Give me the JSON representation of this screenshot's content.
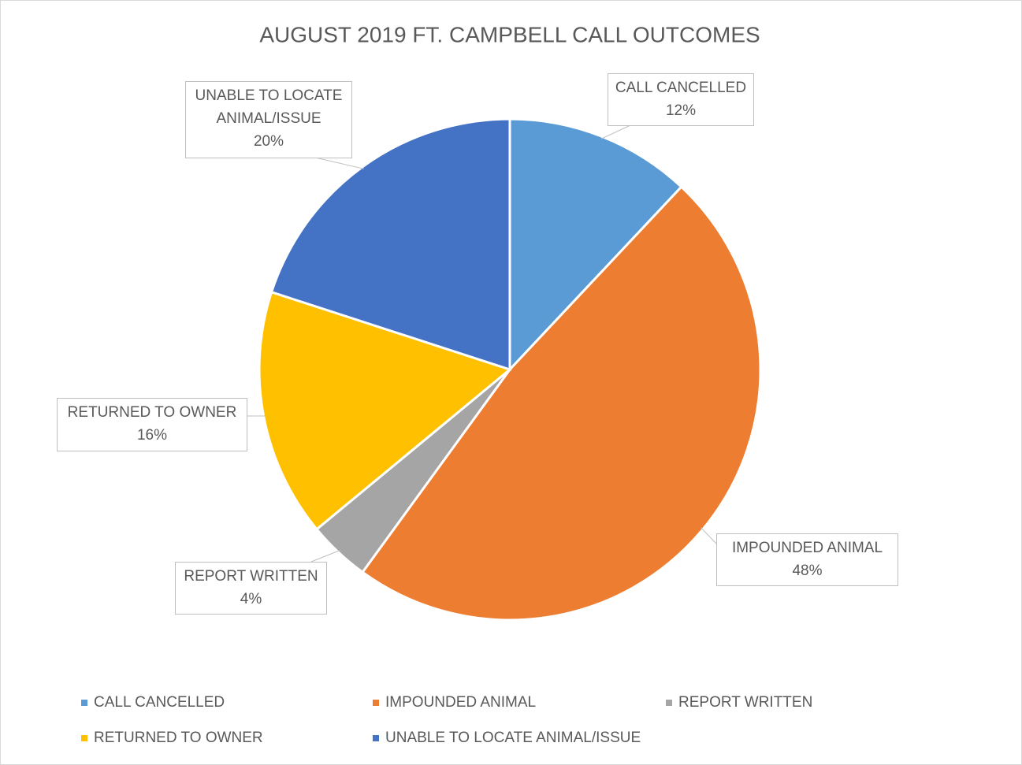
{
  "chart_data": {
    "type": "pie",
    "title": "AUGUST 2019 FT. CAMPBELL CALL OUTCOMES",
    "categories": [
      "CALL CANCELLED",
      "IMPOUNDED ANIMAL",
      "REPORT WRITTEN",
      "RETURNED TO OWNER",
      "UNABLE TO LOCATE ANIMAL/ISSUE"
    ],
    "values": [
      12,
      48,
      4,
      16,
      20
    ],
    "value_labels": [
      "12%",
      "48%",
      "4%",
      "16%",
      "20%"
    ],
    "colors": [
      "#5b9bd5",
      "#ed7d31",
      "#a5a5a5",
      "#ffc000",
      "#4472c4"
    ],
    "legend": "bottom"
  }
}
